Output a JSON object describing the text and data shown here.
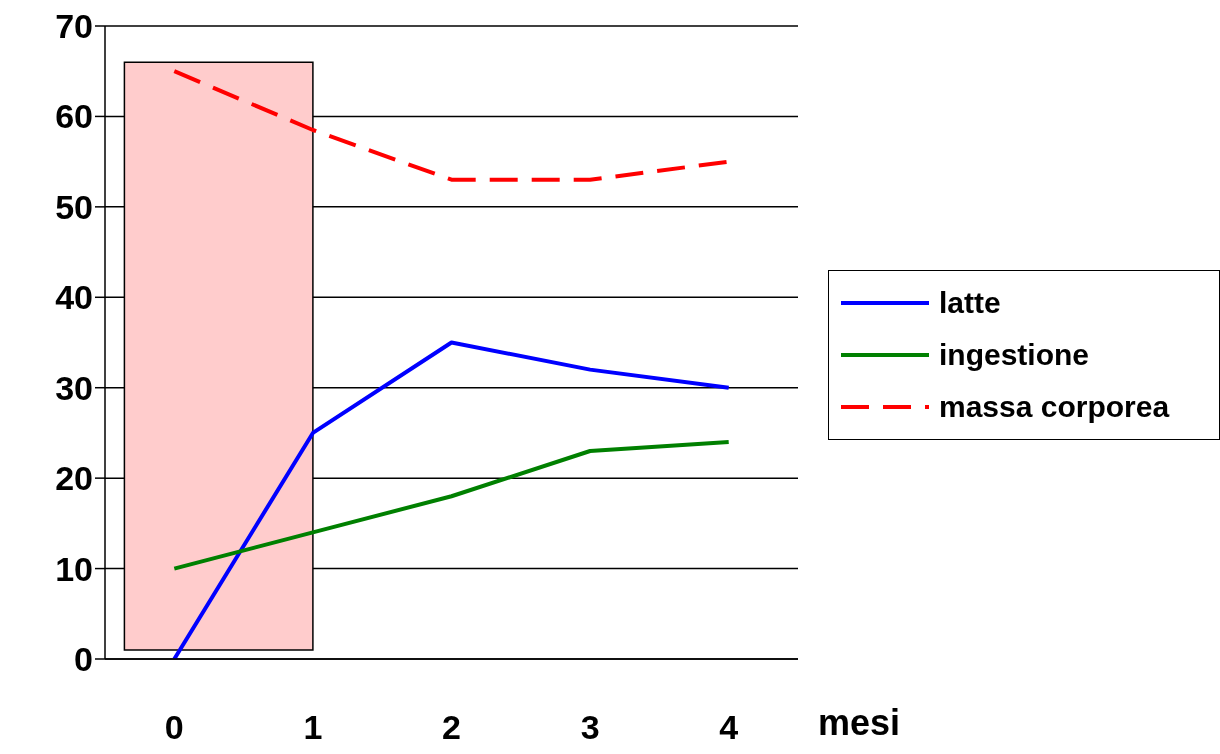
{
  "chart_data": {
    "type": "line",
    "xlabel": "mesi",
    "categories": [
      "0",
      "1",
      "2",
      "3",
      "4"
    ],
    "series": [
      {
        "name": "latte",
        "color": "#0000ff",
        "values": [
          0,
          25,
          35,
          32,
          30
        ]
      },
      {
        "name": "ingestione",
        "color": "#008000",
        "values": [
          10,
          14,
          18,
          23,
          24
        ]
      },
      {
        "name": "massa corporea",
        "color": "#ff0000",
        "values": [
          65,
          58.5,
          53,
          53,
          55
        ],
        "line_style": "dashed"
      }
    ],
    "ylim": [
      0,
      70
    ],
    "yticks": [
      0,
      10,
      20,
      30,
      40,
      50,
      60,
      70
    ],
    "grid": "y",
    "legend": "right",
    "marker": "none",
    "bands": [
      {
        "axis": "x",
        "from": "0",
        "to": "1",
        "color": "#ffcccc"
      }
    ]
  }
}
